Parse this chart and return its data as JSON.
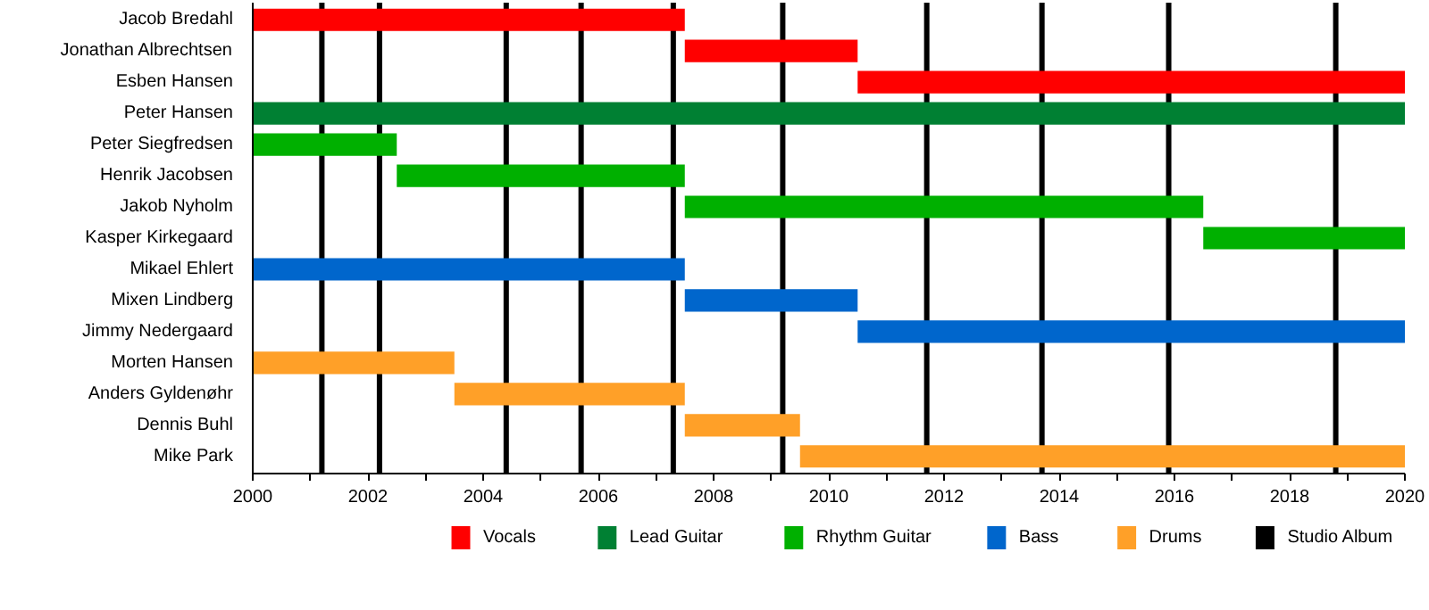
{
  "chart_data": {
    "type": "bar",
    "orientation": "horizontal",
    "categories": [
      "Jacob Bredahl",
      "Jonathan Albrechtsen",
      "Esben Hansen",
      "Peter Hansen",
      "Peter Siegfredsen",
      "Henrik Jacobsen",
      "Jakob Nyholm",
      "Kasper Kirkegaard",
      "Mikael Ehlert",
      "Mixen Lindberg",
      "Jimmy Nedergaard",
      "Morten Hansen",
      "Anders Gyldenøhr",
      "Dennis Buhl",
      "Mike Park"
    ],
    "series": [
      {
        "name": "Vocals",
        "color": "#ff0000",
        "base": [
          2000,
          2007.5,
          2010.5,
          null,
          null,
          null,
          null,
          null,
          null,
          null,
          null,
          null,
          null,
          null,
          null
        ],
        "values": [
          7.5,
          3,
          9.5,
          null,
          null,
          null,
          null,
          null,
          null,
          null,
          null,
          null,
          null,
          null,
          null
        ]
      },
      {
        "name": "Lead Guitar",
        "color": "#008033",
        "base": [
          null,
          null,
          null,
          2000,
          null,
          null,
          null,
          null,
          null,
          null,
          null,
          null,
          null,
          null,
          null
        ],
        "values": [
          null,
          null,
          null,
          20,
          null,
          null,
          null,
          null,
          null,
          null,
          null,
          null,
          null,
          null,
          null
        ]
      },
      {
        "name": "Rhythm Guitar",
        "color": "#00b000",
        "base": [
          null,
          null,
          null,
          null,
          2000,
          2002.5,
          2007.5,
          2016.5,
          null,
          null,
          null,
          null,
          null,
          null,
          null
        ],
        "values": [
          null,
          null,
          null,
          null,
          2.5,
          5,
          9,
          3.5,
          null,
          null,
          null,
          null,
          null,
          null,
          null
        ]
      },
      {
        "name": "Bass",
        "color": "#0066cc",
        "base": [
          null,
          null,
          null,
          null,
          null,
          null,
          null,
          null,
          2000,
          2007.5,
          2010.5,
          null,
          null,
          null,
          null
        ],
        "values": [
          null,
          null,
          null,
          null,
          null,
          null,
          null,
          null,
          7.5,
          3,
          9.5,
          null,
          null,
          null,
          null
        ]
      },
      {
        "name": "Drums",
        "color": "#ffa028",
        "base": [
          null,
          null,
          null,
          null,
          null,
          null,
          null,
          null,
          null,
          null,
          null,
          2000,
          2003.5,
          2007.5,
          2009.5
        ],
        "values": [
          null,
          null,
          null,
          null,
          null,
          null,
          null,
          null,
          null,
          null,
          null,
          3.5,
          4,
          2,
          10.5
        ]
      }
    ],
    "ref_lines": [
      {
        "axis": "x",
        "value": 2001.2,
        "label": "Studio Album",
        "color": "#000000"
      },
      {
        "axis": "x",
        "value": 2002.2,
        "color": "#000000"
      },
      {
        "axis": "x",
        "value": 2004.4,
        "color": "#000000"
      },
      {
        "axis": "x",
        "value": 2005.7,
        "color": "#000000"
      },
      {
        "axis": "x",
        "value": 2007.3,
        "color": "#000000"
      },
      {
        "axis": "x",
        "value": 2009.2,
        "color": "#000000"
      },
      {
        "axis": "x",
        "value": 2011.7,
        "color": "#000000"
      },
      {
        "axis": "x",
        "value": 2013.7,
        "color": "#000000"
      },
      {
        "axis": "x",
        "value": 2015.9,
        "color": "#000000"
      },
      {
        "axis": "x",
        "value": 2018.8,
        "color": "#000000"
      }
    ],
    "xlim": [
      2000,
      2020
    ],
    "xticks": [
      2000,
      {
        "value": 2001,
        "label": null
      },
      2002,
      {
        "value": 2003,
        "label": null
      },
      2004,
      {
        "value": 2005,
        "label": null
      },
      2006,
      {
        "value": 2007,
        "label": null
      },
      2008,
      {
        "value": 2009,
        "label": null
      },
      2010,
      {
        "value": 2011,
        "label": null
      },
      2012,
      {
        "value": 2013,
        "label": null
      },
      2014,
      {
        "value": 2015,
        "label": null
      },
      2016,
      {
        "value": 2017,
        "label": null
      },
      2018,
      {
        "value": 2019,
        "label": null
      },
      2020
    ],
    "grid": false,
    "legend": "bottom"
  }
}
